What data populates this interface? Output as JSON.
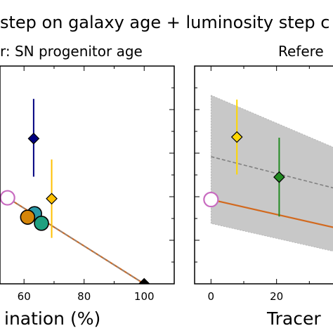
{
  "figure": {
    "suptitle": "step on galaxy age + luminosity step c",
    "left_title": "r: SN progenitor age",
    "right_title": "Refere",
    "left_xlabel": "ination (%)",
    "right_xlabel": "Tracer"
  },
  "chart_data": [
    {
      "type": "scatter",
      "title": "r: SN progenitor age",
      "xlabel": "ination (%)",
      "ylabel": "",
      "xlim": [
        52,
        110
      ],
      "ylim": [
        0,
        1
      ],
      "xticks": [
        60,
        80,
        100
      ],
      "xticklabels": [
        "60",
        "80",
        "100"
      ],
      "grid": false,
      "series": [
        {
          "marker": "diamond",
          "color": "#000080",
          "points": [
            {
              "x": 63.2,
              "y": 0.667,
              "yerr_low": 0.175,
              "yerr_high": 0.182
            }
          ]
        },
        {
          "marker": "diamond",
          "color": "#FFC000",
          "points": [
            {
              "x": 69.2,
              "y": 0.391,
              "yerr_low": 0.18,
              "yerr_high": 0.18
            }
          ]
        },
        {
          "marker": "diamond",
          "color": "#000000",
          "points": [
            {
              "x": 100,
              "y": 0.0
            }
          ]
        },
        {
          "marker": "circle",
          "color": "#2A9AA8",
          "points": [
            {
              "x": 63.5,
              "y": 0.322
            }
          ]
        },
        {
          "marker": "circle",
          "color": "#D4850A",
          "points": [
            {
              "x": 61.2,
              "y": 0.306
            }
          ]
        },
        {
          "marker": "circle",
          "color": "#1FA080",
          "points": [
            {
              "x": 65.8,
              "y": 0.278
            }
          ]
        },
        {
          "marker": "circle-open",
          "color": "#C86BC0",
          "points": [
            {
              "x": 54.5,
              "y": 0.395
            }
          ]
        }
      ],
      "lines": [
        {
          "style": "solid",
          "color": "#D2691E",
          "from": {
            "x": 54.5,
            "y": 0.395
          },
          "to": {
            "x": 100,
            "y": 0.0
          }
        },
        {
          "style": "dashed",
          "color": "#888888",
          "from": {
            "x": 54.5,
            "y": 0.395
          },
          "to": {
            "x": 100,
            "y": 0.0
          }
        }
      ]
    },
    {
      "type": "scatter",
      "title": "Refere",
      "xlabel": "Tracer",
      "ylabel": "",
      "xlim": [
        -5,
        40
      ],
      "ylim": [
        0,
        1
      ],
      "xticks": [
        0,
        20
      ],
      "xticklabels": [
        "0",
        "20"
      ],
      "grid": false,
      "band": {
        "color": "#C8C8C8",
        "upper": [
          {
            "x": 0,
            "y": 0.866
          },
          {
            "x": 40,
            "y": 0.61
          }
        ],
        "lower": [
          {
            "x": 0,
            "y": 0.277
          },
          {
            "x": 40,
            "y": 0.14
          }
        ]
      },
      "series": [
        {
          "marker": "diamond",
          "color": "#FFD700",
          "points": [
            {
              "x": 7.9,
              "y": 0.674,
              "yerr_low": 0.172,
              "yerr_high": 0.172
            }
          ]
        },
        {
          "marker": "diamond",
          "color": "#228B22",
          "points": [
            {
              "x": 20.8,
              "y": 0.49,
              "yerr_low": 0.181,
              "yerr_high": 0.181
            }
          ]
        },
        {
          "marker": "circle-open",
          "color": "#C86BC0",
          "points": [
            {
              "x": 0,
              "y": 0.387
            }
          ]
        }
      ],
      "lines": [
        {
          "style": "dashed",
          "color": "#808080",
          "from": {
            "x": 0,
            "y": 0.584
          },
          "to": {
            "x": 40,
            "y": 0.43
          }
        },
        {
          "style": "solid",
          "color": "#D2691E",
          "from": {
            "x": 0,
            "y": 0.387
          },
          "to": {
            "x": 40,
            "y": 0.25
          }
        }
      ]
    }
  ]
}
